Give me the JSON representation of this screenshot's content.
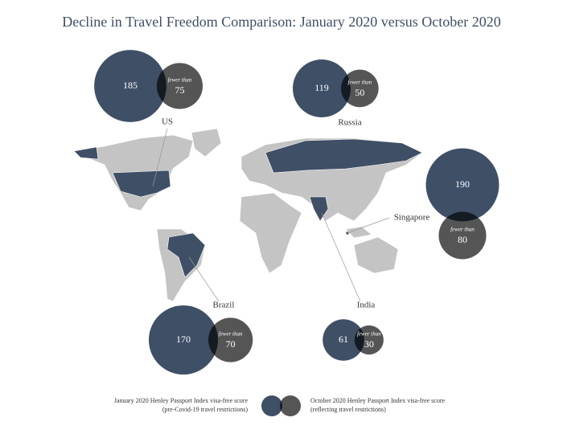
{
  "chart_data": {
    "type": "bubble-map",
    "title": "Decline in Travel Freedom Comparison: January 2020 versus October 2020",
    "categories": [
      "US",
      "Russia",
      "Singapore",
      "Brazil",
      "India"
    ],
    "fewer_label": "fewer than",
    "series": [
      {
        "name": "January 2020 Henley Passport Index visa-free score",
        "note": "(pre-Covid-19 travel restrictions)",
        "color": "#3f4f66",
        "values": [
          185,
          119,
          190,
          170,
          61
        ]
      },
      {
        "name": "October 2020 Henley Passport Index visa-free score",
        "note": "(reflecting travel restrictions)",
        "color": "#555555",
        "values": [
          75,
          50,
          80,
          70,
          30
        ]
      }
    ]
  }
}
